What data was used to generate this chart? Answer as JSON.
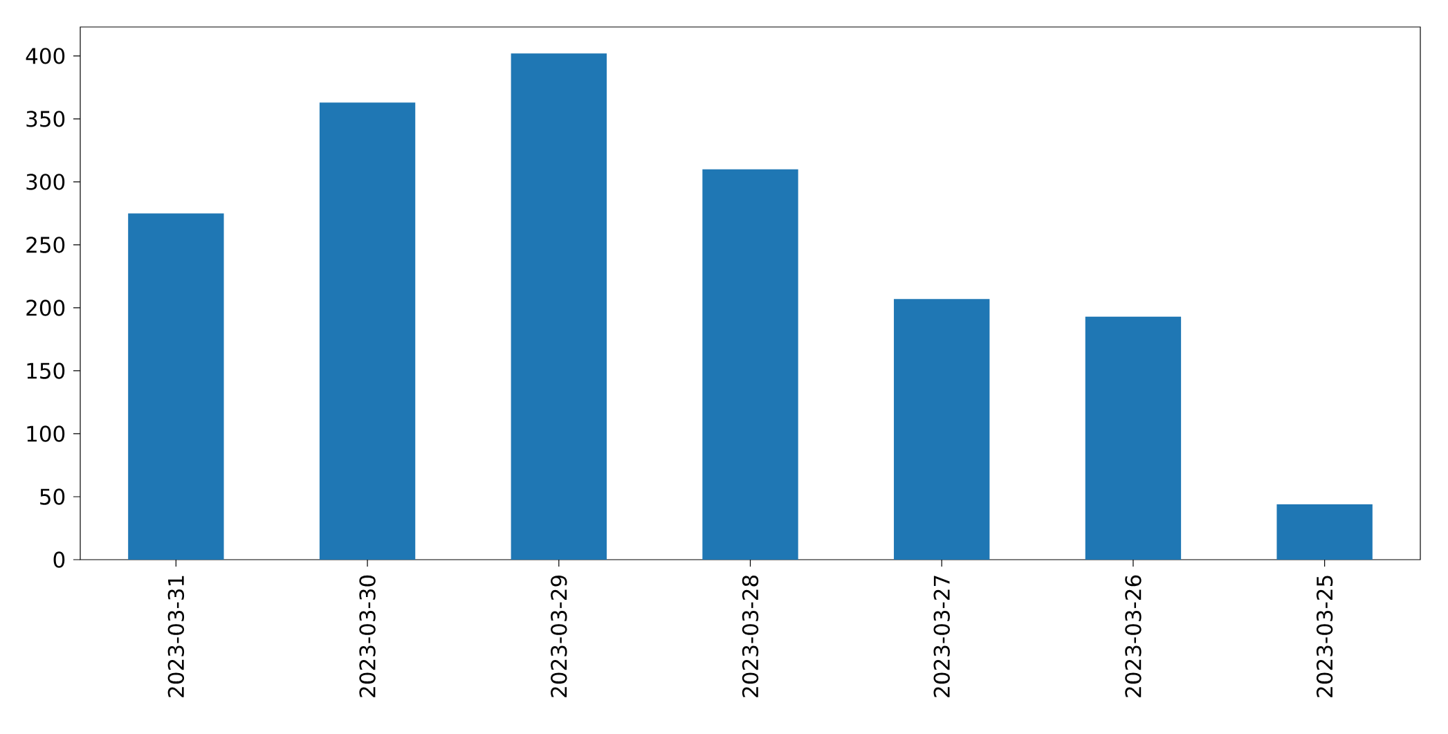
{
  "chart_data": {
    "type": "bar",
    "categories": [
      "2023-03-31",
      "2023-03-30",
      "2023-03-29",
      "2023-03-28",
      "2023-03-27",
      "2023-03-26",
      "2023-03-25"
    ],
    "values": [
      275,
      363,
      402,
      310,
      207,
      193,
      44
    ],
    "color": "#1f77b4",
    "ylim": [
      0,
      423
    ],
    "yticks": [
      0,
      50,
      100,
      150,
      200,
      250,
      300,
      350,
      400
    ]
  }
}
